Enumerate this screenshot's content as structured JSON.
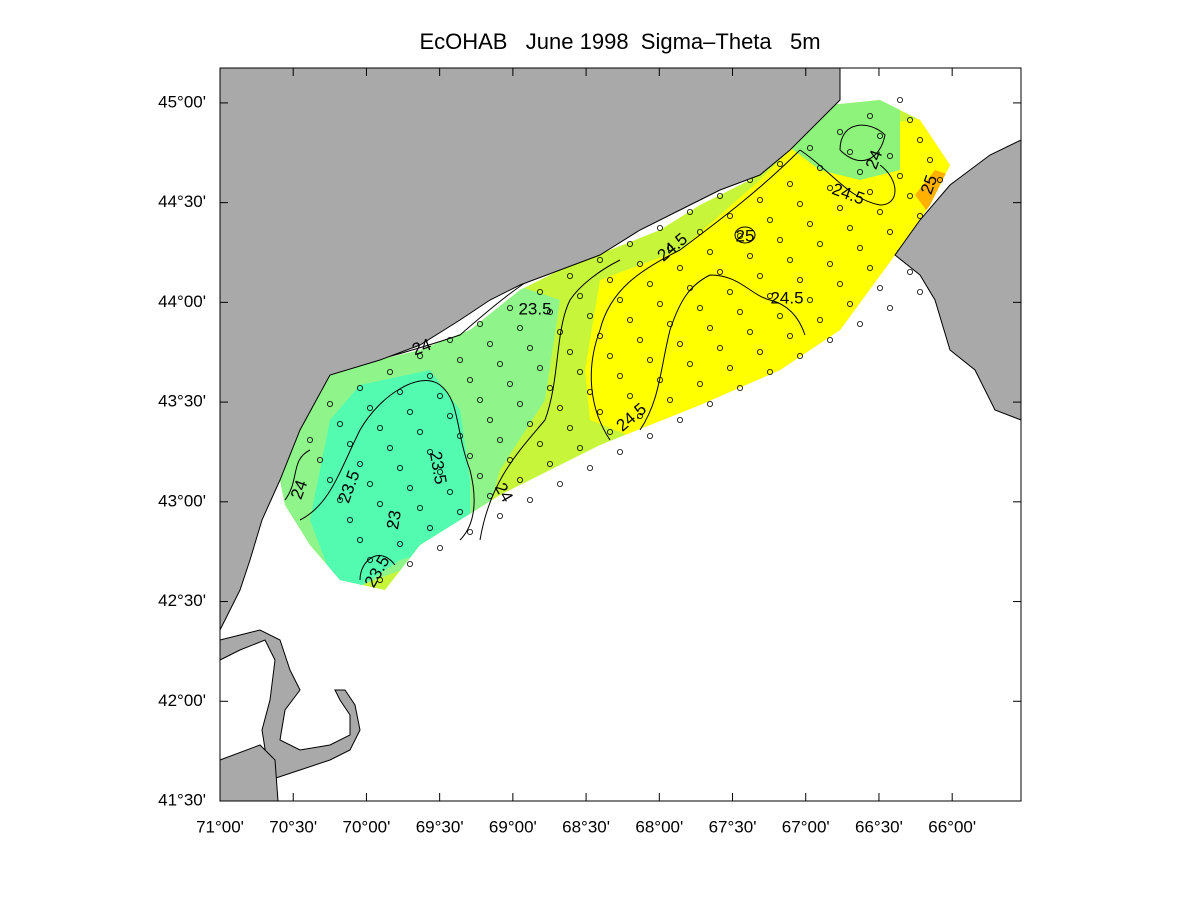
{
  "title": "EcOHAB   June 1998  Sigma–Theta   5m",
  "map": {
    "xlim": [
      71,
      65.53
    ],
    "ylim": [
      41.5,
      45.175
    ],
    "xticks": [
      {
        "value": 71,
        "label": "71°00'"
      },
      {
        "value": 70.5,
        "label": "70°30'"
      },
      {
        "value": 70,
        "label": "70°00'"
      },
      {
        "value": 69.5,
        "label": "69°30'"
      },
      {
        "value": 69,
        "label": "69°00'"
      },
      {
        "value": 68.5,
        "label": "68°30'"
      },
      {
        "value": 68,
        "label": "68°00'"
      },
      {
        "value": 67.5,
        "label": "67°30'"
      },
      {
        "value": 67,
        "label": "67°00'"
      },
      {
        "value": 66.5,
        "label": "66°30'"
      },
      {
        "value": 66,
        "label": "66°00'"
      }
    ],
    "yticks": [
      {
        "value": 45,
        "label": "45°00'"
      },
      {
        "value": 44.5,
        "label": "44°30'"
      },
      {
        "value": 44,
        "label": "44°00'"
      },
      {
        "value": 43.5,
        "label": "43°30'"
      },
      {
        "value": 43,
        "label": "43°00'"
      },
      {
        "value": 42.5,
        "label": "42°30'"
      },
      {
        "value": 42,
        "label": "42°00'"
      },
      {
        "value": 41.5,
        "label": "41°30'"
      }
    ],
    "contour_labels": [
      "24",
      "23.5",
      "23.5",
      "23",
      "23.5",
      "24",
      "23.5",
      "24",
      "24.5",
      "25",
      "24.5",
      "24.5",
      "24.5",
      "24",
      "25"
    ]
  }
}
